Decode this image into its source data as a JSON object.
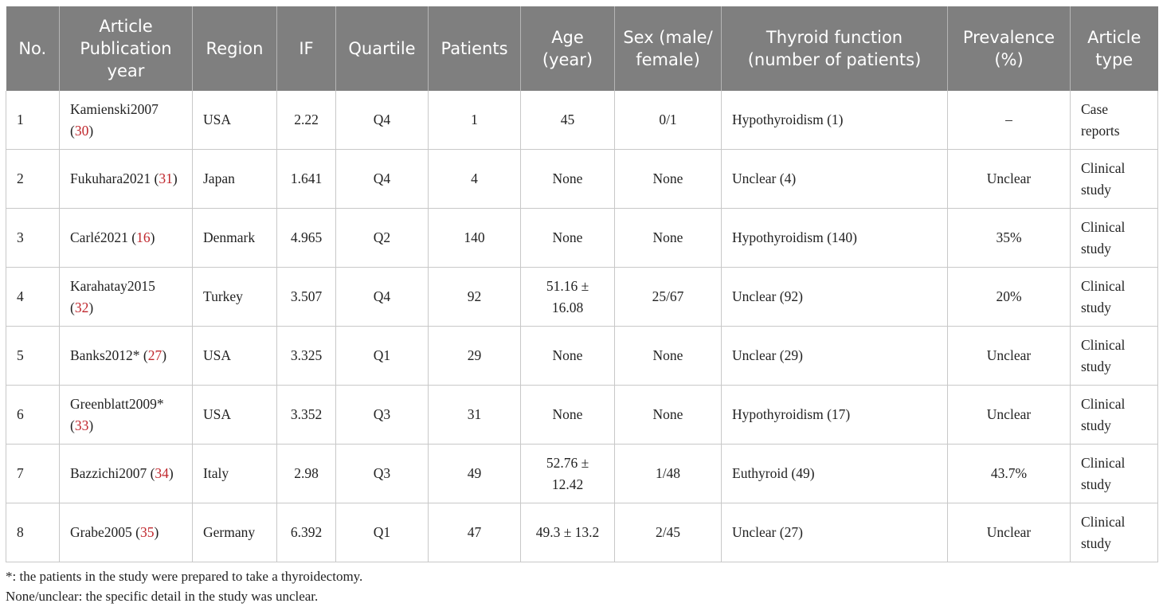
{
  "headers": [
    "No.",
    "Article Publication year",
    "Region",
    "IF",
    "Quartile",
    "Patients",
    "Age (year)",
    "Sex (male/ female)",
    "Thyroid function (number of patients)",
    "Prevalence (%)",
    "Article type"
  ],
  "rows": [
    {
      "no": "1",
      "article": "Kamienski2007",
      "ref": "30",
      "region": "USA",
      "if": "2.22",
      "quartile": "Q4",
      "patients": "1",
      "age": "45",
      "sex": "0/1",
      "thyroid": "Hypothyroidism (1)",
      "prevalence": "–",
      "type": "Case reports"
    },
    {
      "no": "2",
      "article": "Fukuhara2021",
      "ref": "31",
      "region": "Japan",
      "if": "1.641",
      "quartile": "Q4",
      "patients": "4",
      "age": "None",
      "sex": "None",
      "thyroid": "Unclear (4)",
      "prevalence": "Unclear",
      "type": "Clinical study"
    },
    {
      "no": "3",
      "article": "Carlé2021",
      "ref": "16",
      "region": "Denmark",
      "if": "4.965",
      "quartile": "Q2",
      "patients": "140",
      "age": "None",
      "sex": "None",
      "thyroid": "Hypothyroidism (140)",
      "prevalence": "35%",
      "type": "Clinical study"
    },
    {
      "no": "4",
      "article": "Karahatay2015",
      "ref": "32",
      "region": "Turkey",
      "if": "3.507",
      "quartile": "Q4",
      "patients": "92",
      "age": "51.16 ± 16.08",
      "sex": "25/67",
      "thyroid": "Unclear (92)",
      "prevalence": "20%",
      "type": "Clinical study"
    },
    {
      "no": "5",
      "article": "Banks2012*",
      "ref": "27",
      "region": "USA",
      "if": "3.325",
      "quartile": "Q1",
      "patients": "29",
      "age": "None",
      "sex": "None",
      "thyroid": "Unclear (29)",
      "prevalence": "Unclear",
      "type": "Clinical study"
    },
    {
      "no": "6",
      "article": "Greenblatt2009*",
      "ref": "33",
      "region": "USA",
      "if": "3.352",
      "quartile": "Q3",
      "patients": "31",
      "age": "None",
      "sex": "None",
      "thyroid": "Hypothyroidism (17)",
      "prevalence": "Unclear",
      "type": "Clinical study"
    },
    {
      "no": "7",
      "article": "Bazzichi2007",
      "ref": "34",
      "region": "Italy",
      "if": "2.98",
      "quartile": "Q3",
      "patients": "49",
      "age": "52.76 ± 12.42",
      "sex": "1/48",
      "thyroid": "Euthyroid (49)",
      "prevalence": "43.7%",
      "type": "Clinical study"
    },
    {
      "no": "8",
      "article": "Grabe2005",
      "ref": "35",
      "region": "Germany",
      "if": "6.392",
      "quartile": "Q1",
      "patients": "47",
      "age": "49.3 ± 13.2",
      "sex": "2/45",
      "thyroid": "Unclear (27)",
      "prevalence": "Unclear",
      "type": "Clinical study"
    }
  ],
  "notes": [
    "*: the patients in the study were prepared to take a thyroidectomy.",
    "None/unclear: the specific detail in the study was unclear."
  ],
  "colors": {
    "header_bg": "#7f7f7f",
    "header_text": "#ffffff",
    "ref_text": "#c0272d",
    "border": "#c8c8c8"
  }
}
